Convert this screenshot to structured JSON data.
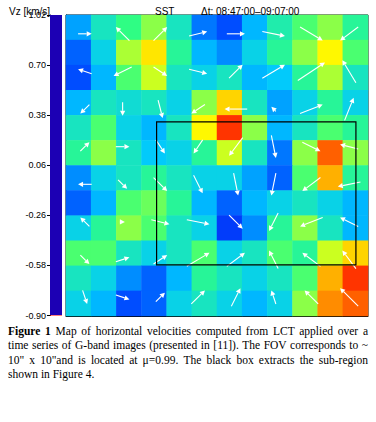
{
  "chart_data": {
    "type": "heatmap",
    "title": "SST",
    "subtitle": "Δt: 08:47:00–09:07:00",
    "xlim": [
      0,
      10
    ],
    "ylim": [
      0,
      10
    ],
    "tick_labels": false,
    "x": [
      0.417,
      1.25,
      2.083,
      2.917,
      3.75,
      4.583,
      5.417,
      6.25,
      7.083,
      7.917,
      8.75,
      9.583
    ],
    "y": [
      9.583,
      8.75,
      7.917,
      7.083,
      6.25,
      5.417,
      4.583,
      3.75,
      2.917,
      2.083,
      1.25,
      0.417
    ],
    "vz": [
      [
        -0.35,
        -0.1,
        0.05,
        0.2,
        -0.1,
        -0.45,
        -0.55,
        -0.3,
        -0.05,
        0.1,
        0.2,
        0.0
      ],
      [
        -0.5,
        -0.2,
        0.25,
        0.45,
        0.0,
        -0.3,
        -0.4,
        -0.2,
        0.0,
        0.2,
        0.4,
        0.1
      ],
      [
        -0.55,
        -0.3,
        0.1,
        0.3,
        -0.1,
        -0.2,
        -0.1,
        -0.3,
        -0.25,
        0.0,
        0.25,
        -0.1
      ],
      [
        -0.3,
        -0.1,
        -0.15,
        -0.1,
        -0.2,
        0.2,
        0.5,
        -0.1,
        -0.35,
        -0.2,
        0.0,
        -0.2
      ],
      [
        -0.1,
        0.1,
        -0.2,
        -0.3,
        -0.1,
        0.4,
        0.9,
        0.2,
        -0.3,
        -0.1,
        0.1,
        0.0
      ],
      [
        0.0,
        0.2,
        -0.1,
        -0.25,
        -0.2,
        0.0,
        0.3,
        -0.1,
        -0.45,
        0.2,
        0.8,
        0.2
      ],
      [
        -0.4,
        -0.2,
        -0.1,
        0.0,
        -0.1,
        -0.2,
        -0.2,
        -0.35,
        -0.5,
        0.1,
        0.6,
        0.0
      ],
      [
        -0.5,
        -0.3,
        0.1,
        0.15,
        0.0,
        -0.3,
        -0.5,
        -0.3,
        -0.2,
        -0.1,
        -0.2,
        -0.3
      ],
      [
        -0.2,
        0.0,
        0.2,
        0.1,
        -0.1,
        -0.2,
        -0.6,
        -0.4,
        0.0,
        0.2,
        -0.1,
        -0.3
      ],
      [
        0.1,
        0.1,
        -0.1,
        -0.2,
        -0.1,
        0.1,
        -0.2,
        -0.1,
        0.1,
        0.0,
        0.3,
        0.5
      ],
      [
        -0.1,
        -0.2,
        -0.4,
        -0.5,
        -0.3,
        0.0,
        -0.1,
        -0.2,
        -0.1,
        0.1,
        0.6,
        0.9
      ],
      [
        -0.2,
        -0.3,
        -0.55,
        -0.5,
        -0.2,
        -0.1,
        -0.2,
        -0.3,
        -0.2,
        0.2,
        0.7,
        0.8
      ]
    ],
    "colorbar": {
      "label": "Vz [km/s]",
      "range": [
        -0.9,
        1.02
      ],
      "ticks": [
        {
          "value": -0.9,
          "label": "-0.90"
        },
        -0.58,
        -0.26,
        0.06,
        0.38,
        {
          "value": 0.7,
          "label": "0.70"
        },
        1.02
      ]
    },
    "arrows": {
      "x": [
        0.625,
        1.875,
        3.125,
        4.375,
        5.625,
        6.875,
        8.125,
        9.375
      ],
      "y": [
        9.375,
        8.125,
        6.875,
        5.625,
        4.375,
        3.125,
        1.875,
        0.625
      ],
      "vx": [
        [
          0.3,
          -0.3,
          0.3,
          0.4,
          0.4,
          0.5,
          0.5,
          -0.4
        ],
        [
          -0.3,
          -0.4,
          0.3,
          0.4,
          0.3,
          0.5,
          0.6,
          -0.3
        ],
        [
          -0.2,
          0.0,
          0.1,
          -0.3,
          -0.5,
          -0.1,
          0.5,
          0.2
        ],
        [
          0.2,
          0.3,
          0.2,
          -0.2,
          -0.3,
          0.1,
          0.4,
          -0.4
        ],
        [
          -0.3,
          0.2,
          0.3,
          0.2,
          0.1,
          -0.1,
          -0.4,
          -0.5
        ],
        [
          -0.2,
          0.1,
          0.4,
          0.5,
          0.3,
          -0.2,
          -0.5,
          -0.4
        ],
        [
          0.2,
          0.3,
          0.3,
          0.5,
          0.4,
          -0.2,
          -0.4,
          -0.3
        ],
        [
          0.1,
          0.3,
          0.2,
          0.3,
          0.2,
          -0.1,
          -0.3,
          -0.4
        ]
      ],
      "vy": [
        [
          0.0,
          0.3,
          0.3,
          0.1,
          0.0,
          -0.1,
          -0.3,
          -0.3
        ],
        [
          0.1,
          -0.2,
          -0.2,
          -0.1,
          0.3,
          0.3,
          0.4,
          0.5
        ],
        [
          -0.2,
          -0.3,
          -0.4,
          -0.2,
          0.0,
          0.1,
          0.2,
          0.5
        ],
        [
          0.2,
          0.0,
          -0.3,
          -0.3,
          -0.4,
          -0.5,
          -0.2,
          0.1
        ],
        [
          0.0,
          -0.2,
          -0.3,
          -0.4,
          -0.5,
          -0.5,
          -0.3,
          -0.1
        ],
        [
          0.2,
          0.0,
          -0.1,
          -0.1,
          -0.3,
          -0.4,
          -0.2,
          0.2
        ],
        [
          -0.2,
          0.1,
          0.2,
          0.3,
          0.3,
          0.4,
          0.3,
          0.4
        ],
        [
          -0.3,
          -0.1,
          0.2,
          0.3,
          0.4,
          0.3,
          0.3,
          0.4
        ]
      ]
    },
    "box": {
      "x": [
        3.0,
        9.6
      ],
      "y": [
        1.7,
        6.45
      ]
    }
  },
  "caption": {
    "label": "Figure 1",
    "text": "Map of horizontal velocities computed from LCT applied over a time series of G-band images (presented in [11]). The FOV corresponds to ~ 10\" x 10\"and is located at μ=0.99. The black box extracts the sub-region shown in Figure 4."
  }
}
